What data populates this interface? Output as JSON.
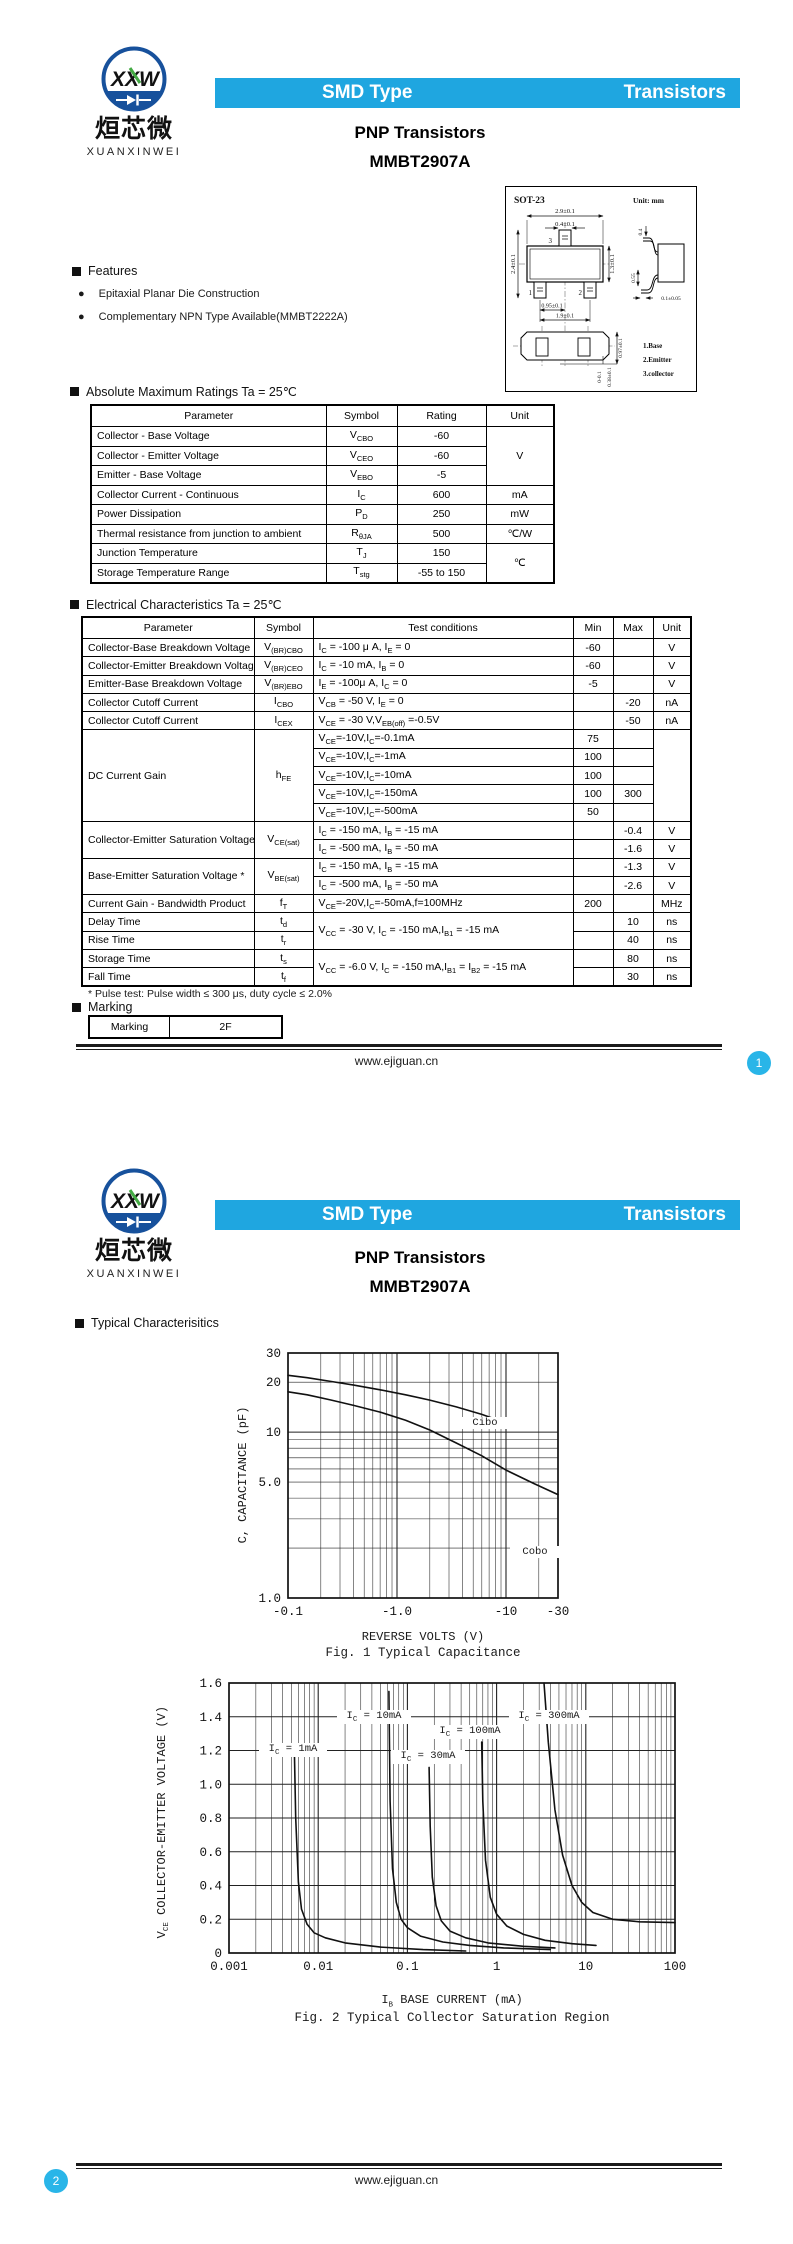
{
  "brand": {
    "logo": "XXW",
    "cn": "烜芯微",
    "en": "XUANXINWEI"
  },
  "header": {
    "left": "SMD Type",
    "right": "Transistors"
  },
  "title": {
    "line1": "PNP  Transistors",
    "line2": "MMBT2907A"
  },
  "page1": {
    "features": {
      "heading": "Features",
      "bullet": "●",
      "items": [
        "Epitaxial Planar Die Construction",
        "Complementary NPN Type Available(MMBT2222A)"
      ]
    },
    "package": {
      "name": "SOT-23",
      "unit": "Unit: mm",
      "pins": [
        "1",
        "2",
        "3"
      ],
      "legend": [
        "1.Base",
        "2.Emitter",
        "3.collector"
      ],
      "dims": {
        "top_width": "2.9±0.1",
        "tab_width": "0.4±0.1",
        "total_height": "2.4±0.1",
        "body_height": "1.3±0.1",
        "pitch": "0.95±0.1",
        "span": "1.9±0.1",
        "lead_top": "0.4",
        "lead_bottom": "0.55",
        "lead_thickness": "0.1±0.05",
        "pkg_height": "0.97±0.1",
        "standoff": "0-0.1",
        "lead_width": "0.38±0.1"
      }
    },
    "abs_max": {
      "heading": "Absolute Maximum Ratings Ta = 25℃",
      "columns": [
        "Parameter",
        "Symbol",
        "Rating",
        "Unit"
      ],
      "rows": [
        [
          {
            "t": "Collector - Base Voltage",
            "a": "l"
          },
          {
            "t": "V~CBO~"
          },
          {
            "t": "-60"
          },
          {
            "t": "V",
            "rs": 3
          }
        ],
        [
          {
            "t": "Collector - Emitter Voltage",
            "a": "l"
          },
          {
            "t": "V~CEO~"
          },
          {
            "t": "-60"
          }
        ],
        [
          {
            "t": "Emitter - Base Voltage",
            "a": "l"
          },
          {
            "t": "V~EBO~"
          },
          {
            "t": "-5"
          }
        ],
        [
          {
            "t": "Collector Current  - Continuous",
            "a": "l"
          },
          {
            "t": "I~C~"
          },
          {
            "t": "600"
          },
          {
            "t": "mA"
          }
        ],
        [
          {
            "t": "Power Dissipation",
            "a": "l"
          },
          {
            "t": "P~D~"
          },
          {
            "t": "250"
          },
          {
            "t": "mW"
          }
        ],
        [
          {
            "t": "Thermal resistance from junction to ambient",
            "a": "l"
          },
          {
            "t": "R~θJA~"
          },
          {
            "t": "500"
          },
          {
            "t": "℃/W"
          }
        ],
        [
          {
            "t": "Junction Temperature",
            "a": "l"
          },
          {
            "t": "T~J~"
          },
          {
            "t": "150"
          },
          {
            "t": "℃",
            "rs": 2
          }
        ],
        [
          {
            "t": "Storage Temperature Range",
            "a": "l"
          },
          {
            "t": "T~stg~"
          },
          {
            "t": "-55 to 150"
          }
        ]
      ]
    },
    "elec": {
      "heading": "Electrical Characteristics Ta = 25℃",
      "columns": [
        "Parameter",
        "Symbol",
        "Test  conditions",
        "Min",
        "Max",
        "Unit"
      ],
      "rows": [
        [
          {
            "t": "Collector-Base Breakdown Voltage",
            "a": "l"
          },
          {
            "t": "V~(BR)CBO~"
          },
          {
            "t": "I~C~ = -100 μ A, I~E~ = 0",
            "a": "l"
          },
          {
            "t": "-60"
          },
          {
            "t": ""
          },
          {
            "t": "V"
          }
        ],
        [
          {
            "t": "Collector-Emitter Breakdown Voltage*",
            "a": "l"
          },
          {
            "t": "V~(BR)CEO~"
          },
          {
            "t": "I~C~ = -10 mA, I~B~ = 0",
            "a": "l"
          },
          {
            "t": "-60"
          },
          {
            "t": ""
          },
          {
            "t": "V"
          }
        ],
        [
          {
            "t": "Emitter-Base Breakdown Voltage",
            "a": "l"
          },
          {
            "t": "V~(BR)EBO~"
          },
          {
            "t": "I~E~ = -100μ A, I~C~ = 0",
            "a": "l"
          },
          {
            "t": "-5"
          },
          {
            "t": ""
          },
          {
            "t": "V"
          }
        ],
        [
          {
            "t": "Collector Cutoff Current",
            "a": "l"
          },
          {
            "t": "I~CBO~"
          },
          {
            "t": "V~CB~ = -50 V, I~E~ = 0",
            "a": "l"
          },
          {
            "t": ""
          },
          {
            "t": "-20"
          },
          {
            "t": "nA"
          }
        ],
        [
          {
            "t": "Collector Cutoff Current",
            "a": "l"
          },
          {
            "t": "I~CEX~"
          },
          {
            "t": "V~CE~ = -30 V,V~EB(off)~ =-0.5V",
            "a": "l"
          },
          {
            "t": ""
          },
          {
            "t": "-50"
          },
          {
            "t": "nA"
          }
        ],
        [
          {
            "t": "DC Current Gain",
            "a": "l",
            "rs": 5
          },
          {
            "t": "h~FE~",
            "rs": 5
          },
          {
            "t": "V~CE~=-10V,I~C~=-0.1mA",
            "a": "l"
          },
          {
            "t": "75"
          },
          {
            "t": ""
          },
          {
            "t": "",
            "rs": 5
          }
        ],
        [
          {
            "t": "V~CE~=-10V,I~C~=-1mA",
            "a": "l"
          },
          {
            "t": "100"
          },
          {
            "t": ""
          }
        ],
        [
          {
            "t": "V~CE~=-10V,I~C~=-10mA",
            "a": "l"
          },
          {
            "t": "100"
          },
          {
            "t": ""
          }
        ],
        [
          {
            "t": "V~CE~=-10V,I~C~=-150mA",
            "a": "l"
          },
          {
            "t": "100"
          },
          {
            "t": "300"
          }
        ],
        [
          {
            "t": "V~CE~=-10V,I~C~=-500mA",
            "a": "l"
          },
          {
            "t": "50"
          },
          {
            "t": ""
          }
        ],
        [
          {
            "t": "Collector-Emitter Saturation Voltage *",
            "a": "l",
            "rs": 2
          },
          {
            "t": "V~CE(sat)~",
            "rs": 2
          },
          {
            "t": "I~C~ = -150 mA, I~B~ = -15 mA",
            "a": "l"
          },
          {
            "t": ""
          },
          {
            "t": "-0.4"
          },
          {
            "t": "V"
          }
        ],
        [
          {
            "t": "I~C~ = -500 mA, I~B~ = -50 mA",
            "a": "l"
          },
          {
            "t": ""
          },
          {
            "t": "-1.6"
          },
          {
            "t": "V"
          }
        ],
        [
          {
            "t": "Base-Emitter Saturation Voltage *",
            "a": "l",
            "rs": 2
          },
          {
            "t": "V~BE(sat)~",
            "rs": 2
          },
          {
            "t": "I~C~ = -150 mA, I~B~ = -15 mA",
            "a": "l"
          },
          {
            "t": ""
          },
          {
            "t": "-1.3"
          },
          {
            "t": "V"
          }
        ],
        [
          {
            "t": "I~C~ = -500 mA, I~B~ = -50 mA",
            "a": "l"
          },
          {
            "t": ""
          },
          {
            "t": "-2.6"
          },
          {
            "t": "V"
          }
        ],
        [
          {
            "t": "Current Gain - Bandwidth Product",
            "a": "l"
          },
          {
            "t": "f~T~"
          },
          {
            "t": "V~CE~=-20V,I~C~=-50mA,f=100MHz",
            "a": "l"
          },
          {
            "t": "200"
          },
          {
            "t": ""
          },
          {
            "t": "MHz"
          }
        ],
        [
          {
            "t": "Delay Time",
            "a": "l"
          },
          {
            "t": "t~d~"
          },
          {
            "t": "V~CC~ = -30 V, I~C~ = -150 mA,I~B1~ = -15 mA",
            "a": "l",
            "rs": 2
          },
          {
            "t": ""
          },
          {
            "t": "10"
          },
          {
            "t": "ns"
          }
        ],
        [
          {
            "t": "Rise Time",
            "a": "l"
          },
          {
            "t": "t~r~"
          },
          {
            "t": ""
          },
          {
            "t": "40"
          },
          {
            "t": "ns"
          }
        ],
        [
          {
            "t": "Storage Time",
            "a": "l"
          },
          {
            "t": "t~s~"
          },
          {
            "t": "V~CC~ = -6.0 V, I~C~ = -150 mA,I~B1~ = I~B2~ = -15 mA",
            "a": "l",
            "rs": 2
          },
          {
            "t": ""
          },
          {
            "t": "80"
          },
          {
            "t": "ns"
          }
        ],
        [
          {
            "t": "Fall Time",
            "a": "l"
          },
          {
            "t": "t~f~"
          },
          {
            "t": ""
          },
          {
            "t": "30"
          },
          {
            "t": "ns"
          }
        ]
      ]
    },
    "footnote": "* Pulse test: Pulse width ≤ 300 μs, duty cycle ≤ 2.0%",
    "marking": {
      "heading": "Marking",
      "label": "Marking",
      "value": "2F"
    },
    "footer": {
      "url": "www.ejiguan.cn",
      "page": "1"
    }
  },
  "page2": {
    "section": "Typical  Characterisitics",
    "footer": {
      "url": "www.ejiguan.cn",
      "page": "2"
    }
  },
  "chart_data": [
    {
      "type": "line",
      "title": "Fig. 1 Typical Capacitance",
      "xlabel": "REVERSE VOLTS (V)",
      "ylabel": "C, CAPACITANCE (pF)",
      "x_scale": "log",
      "y_scale": "log",
      "xlim": [
        0.1,
        30
      ],
      "ylim": [
        1,
        30
      ],
      "grid": "log-minor both axes",
      "x_ticks": [
        "-0.1",
        "-1.0",
        "-10",
        "-30"
      ],
      "x_tick_vals": [
        0.1,
        1,
        10,
        30
      ],
      "y_ticks": [
        "1.0",
        "5.0",
        "10",
        "20",
        "30"
      ],
      "y_tick_vals": [
        1,
        5,
        10,
        20,
        30
      ],
      "series": [
        {
          "name": "Cibo",
          "x": [
            0.1,
            0.15,
            0.25,
            0.4,
            0.7,
            1.2,
            2,
            3.5,
            6,
            8.5
          ],
          "y": [
            22,
            21.3,
            20.2,
            19.2,
            18,
            16.8,
            15.6,
            14.2,
            12.8,
            11.8
          ]
        },
        {
          "name": "Cobo",
          "x": [
            0.1,
            0.15,
            0.25,
            0.4,
            0.7,
            1.2,
            2,
            3.5,
            6,
            10,
            18,
            30
          ],
          "y": [
            17.5,
            16.8,
            15.6,
            14.5,
            13.2,
            11.8,
            10.3,
            8.6,
            7.2,
            5.9,
            4.9,
            4.2
          ]
        }
      ]
    },
    {
      "type": "line",
      "title": "Fig. 2 Typical Collector Saturation Region",
      "xlabel": "I~B~ BASE CURRENT (mA)",
      "ylabel": "V~CE~ COLLECTOR-EMITTER VOLTAGE (V)",
      "x_scale": "log",
      "y_scale": "linear",
      "xlim": [
        0.001,
        100
      ],
      "ylim": [
        0,
        1.6
      ],
      "grid": "log-minor x, 0.2-step y",
      "x_ticks": [
        "0.001",
        "0.01",
        "0.1",
        "1",
        "10",
        "100"
      ],
      "x_tick_vals": [
        0.001,
        0.01,
        0.1,
        1,
        10,
        100
      ],
      "y_ticks": [
        "0",
        "0.2",
        "0.4",
        "0.6",
        "0.8",
        "1.0",
        "1.2",
        "1.4",
        "1.6"
      ],
      "y_tick_vals": [
        0,
        0.2,
        0.4,
        0.6,
        0.8,
        1.0,
        1.2,
        1.4,
        1.6
      ],
      "series": [
        {
          "name": "I~C~ = 1mA",
          "x": [
            0.0054,
            0.0056,
            0.006,
            0.0065,
            0.0075,
            0.009,
            0.012,
            0.02,
            0.05,
            0.15,
            0.45
          ],
          "y": [
            1.22,
            0.8,
            0.42,
            0.26,
            0.17,
            0.12,
            0.09,
            0.06,
            0.035,
            0.02,
            0.012
          ]
        },
        {
          "name": "I~C~ = 10mA",
          "x": [
            0.062,
            0.064,
            0.068,
            0.075,
            0.085,
            0.1,
            0.14,
            0.25,
            0.5,
            1.2,
            4
          ],
          "y": [
            1.55,
            0.9,
            0.5,
            0.3,
            0.2,
            0.15,
            0.1,
            0.065,
            0.045,
            0.03,
            0.02
          ]
        },
        {
          "name": "I~C~ = 30mA",
          "x": [
            0.175,
            0.18,
            0.19,
            0.21,
            0.24,
            0.3,
            0.45,
            0.8,
            2,
            4.5
          ],
          "y": [
            1.1,
            0.75,
            0.45,
            0.28,
            0.19,
            0.13,
            0.09,
            0.06,
            0.04,
            0.03
          ]
        },
        {
          "name": "I~C~ = 100mA",
          "x": [
            0.68,
            0.7,
            0.75,
            0.85,
            1,
            1.3,
            2,
            3.5,
            7,
            13
          ],
          "y": [
            1.25,
            0.9,
            0.55,
            0.33,
            0.23,
            0.16,
            0.11,
            0.075,
            0.055,
            0.045
          ]
        },
        {
          "name": "I~C~ = 300mA",
          "x": [
            3.4,
            3.8,
            4.5,
            5.5,
            7,
            9,
            12,
            20,
            40,
            100
          ],
          "y": [
            1.6,
            1.25,
            0.85,
            0.58,
            0.4,
            0.3,
            0.24,
            0.2,
            0.185,
            0.18
          ]
        }
      ]
    }
  ]
}
